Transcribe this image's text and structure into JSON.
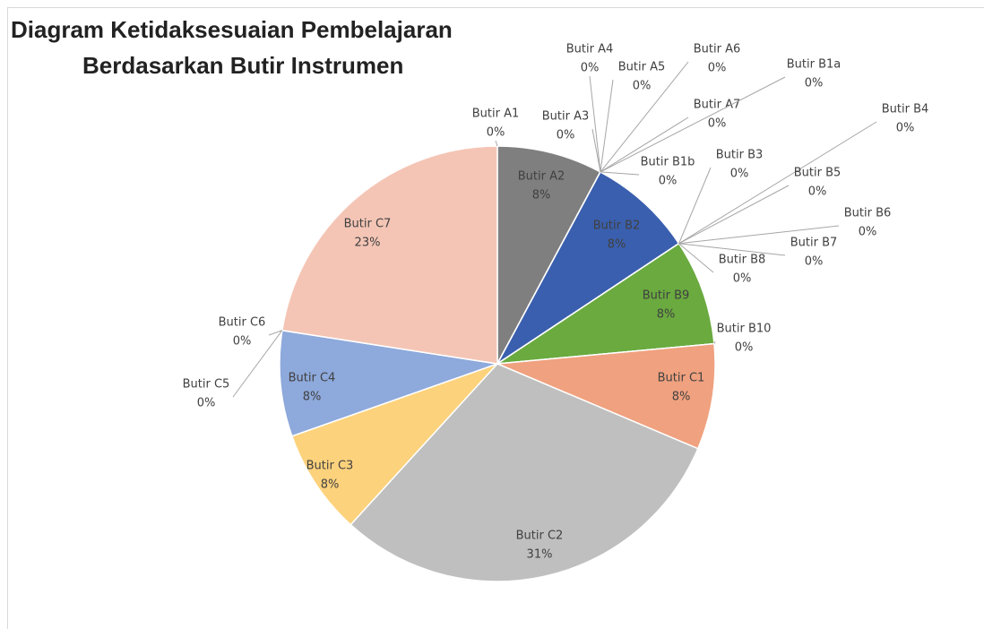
{
  "chart_data": {
    "type": "pie",
    "title": [
      "Diagram Ketidaksesuaian Pembelajaran",
      "Berdasarkan Butir Instrumen"
    ],
    "categories": [
      "Butir A1",
      "Butir A2",
      "Butir A3",
      "Butir A4",
      "Butir A5",
      "Butir A6",
      "Butir A7",
      "Butir B1a",
      "Butir B1b",
      "Butir B2",
      "Butir B3",
      "Butir B4",
      "Butir B5",
      "Butir B6",
      "Butir B7",
      "Butir B8",
      "Butir B9",
      "Butir B10",
      "Butir C1",
      "Butir C2",
      "Butir C3",
      "Butir C4",
      "Butir C5",
      "Butir C6",
      "Butir C7"
    ],
    "values": [
      0,
      8,
      0,
      0,
      0,
      0,
      0,
      0,
      0,
      8,
      0,
      0,
      0,
      0,
      0,
      0,
      8,
      0,
      8,
      31,
      8,
      8,
      0,
      0,
      23
    ],
    "value_labels": [
      "0%",
      "8%",
      "0%",
      "0%",
      "0%",
      "0%",
      "0%",
      "0%",
      "0%",
      "8%",
      "0%",
      "0%",
      "0%",
      "0%",
      "0%",
      "0%",
      "8%",
      "0%",
      "8%",
      "31%",
      "8%",
      "8%",
      "0%",
      "0%",
      "23%"
    ],
    "colors": [
      "#4472c4",
      "#7f7f7f",
      "#ed7d31",
      "#a5a5a5",
      "#ffc000",
      "#5b9bd5",
      "#70ad47",
      "#264478",
      "#9e480e",
      "#3a5fae",
      "#997300",
      "#255e91",
      "#43682b",
      "#698ed0",
      "#f1975a",
      "#b7b7b7",
      "#6aaa3f",
      "#7cafdd",
      "#f0a17f",
      "#bfbfbf",
      "#fdd27c",
      "#8ea9db",
      "#5e8f3e",
      "#2c4f8f",
      "#f4c5b5"
    ]
  }
}
